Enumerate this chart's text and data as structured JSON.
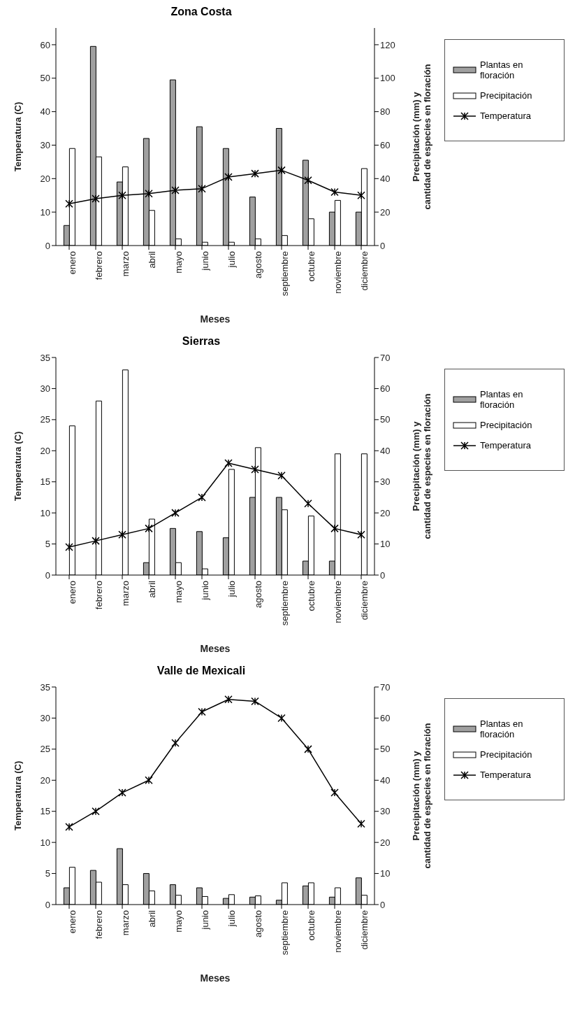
{
  "chart_data": [
    {
      "type": "bar",
      "title": "Zona Costa",
      "xlabel": "Meses",
      "ylabel": "Temperatura (C)",
      "y2label": "Precipitación (mm) y cantidad de especies en floración",
      "categories": [
        "enero",
        "febrero",
        "marzo",
        "abril",
        "mayo",
        "junio",
        "julio",
        "agosto",
        "septiembre",
        "octubre",
        "noviembre",
        "diciembre"
      ],
      "series": [
        {
          "name": "Plantas en floración",
          "axis": "y2",
          "color": "#a0a0a0",
          "values": [
            12,
            119,
            38,
            64,
            99,
            71,
            58,
            29,
            70,
            51,
            20,
            20
          ]
        },
        {
          "name": "Precipitación",
          "axis": "y2",
          "color": "#ffffff",
          "values": [
            58,
            53,
            47,
            21,
            4,
            2,
            2,
            4,
            6,
            16,
            27,
            46
          ]
        },
        {
          "name": "Temperatura",
          "type": "line",
          "axis": "y",
          "color": "#000000",
          "values": [
            12.5,
            14,
            15,
            15.5,
            16.5,
            17,
            20.5,
            21.5,
            22.5,
            19.5,
            16,
            15
          ]
        }
      ],
      "ylim": [
        0,
        65
      ],
      "yticks": [
        0,
        10,
        20,
        30,
        40,
        50,
        60
      ],
      "y2lim": [
        0,
        130
      ],
      "y2ticks": [
        0,
        20,
        40,
        60,
        80,
        100,
        120
      ],
      "grid": false,
      "legend": "right",
      "marker": "cross",
      "line_style": "solid"
    },
    {
      "type": "bar",
      "title": "Sierras",
      "xlabel": "Meses",
      "ylabel": "Temperatura (C)",
      "y2label": "Precipitación (mm) y cantidad de especies en floración",
      "categories": [
        "enero",
        "febrero",
        "marzo",
        "abril",
        "mayo",
        "junio",
        "julio",
        "agosto",
        "septiembre",
        "octubre",
        "noviembre",
        "diciembre"
      ],
      "series": [
        {
          "name": "Plantas en floración",
          "axis": "y2",
          "color": "#a0a0a0",
          "values": [
            0,
            0,
            0,
            4,
            15,
            14,
            12,
            25,
            25,
            4.5,
            4.5,
            0
          ]
        },
        {
          "name": "Precipitación",
          "axis": "y2",
          "color": "#ffffff",
          "values": [
            48,
            56,
            66,
            18,
            4,
            2,
            34,
            41,
            21,
            19,
            39,
            39
          ]
        },
        {
          "name": "Temperatura",
          "type": "line",
          "axis": "y",
          "color": "#000000",
          "values": [
            4.5,
            5.5,
            6.5,
            7.5,
            10,
            12.5,
            18,
            17,
            16,
            11.5,
            7.5,
            6.5
          ]
        }
      ],
      "ylim": [
        0,
        35
      ],
      "yticks": [
        0,
        5,
        10,
        15,
        20,
        25,
        30,
        35
      ],
      "y2lim": [
        0,
        70
      ],
      "y2ticks": [
        0,
        10,
        20,
        30,
        40,
        50,
        60,
        70
      ],
      "grid": false,
      "legend": "right",
      "marker": "cross",
      "line_style": "solid"
    },
    {
      "type": "bar",
      "title": "Valle de Mexicali",
      "xlabel": "Meses",
      "ylabel": "Temperatura (C)",
      "y2label": "Precipitación (mm) y cantidad de especies en floración",
      "categories": [
        "enero",
        "febrero",
        "marzo",
        "abril",
        "mayo",
        "junio",
        "julio",
        "agosto",
        "septiembre",
        "octubre",
        "noviembre",
        "diciembre"
      ],
      "series": [
        {
          "name": "Plantas en floración",
          "axis": "y2",
          "color": "#a0a0a0",
          "values": [
            5.4,
            11,
            18,
            10,
            6.4,
            5.4,
            2,
            2.4,
            1.4,
            6,
            2.4,
            8.6
          ]
        },
        {
          "name": "Precipitación",
          "axis": "y2",
          "color": "#ffffff",
          "values": [
            12,
            7.2,
            6.4,
            4.4,
            3,
            2.6,
            3.2,
            2.8,
            7,
            7,
            5.4,
            3
          ]
        },
        {
          "name": "Temperatura",
          "type": "line",
          "axis": "y",
          "color": "#000000",
          "values": [
            12.5,
            15,
            18,
            20,
            26,
            31,
            33,
            32.7,
            30,
            25,
            18,
            13
          ]
        }
      ],
      "ylim": [
        0,
        35
      ],
      "yticks": [
        0,
        5,
        10,
        15,
        20,
        25,
        30,
        35
      ],
      "y2lim": [
        0,
        70
      ],
      "y2ticks": [
        0,
        10,
        20,
        30,
        40,
        50,
        60,
        70
      ],
      "grid": false,
      "legend": "right",
      "marker": "cross",
      "line_style": "solid"
    }
  ]
}
